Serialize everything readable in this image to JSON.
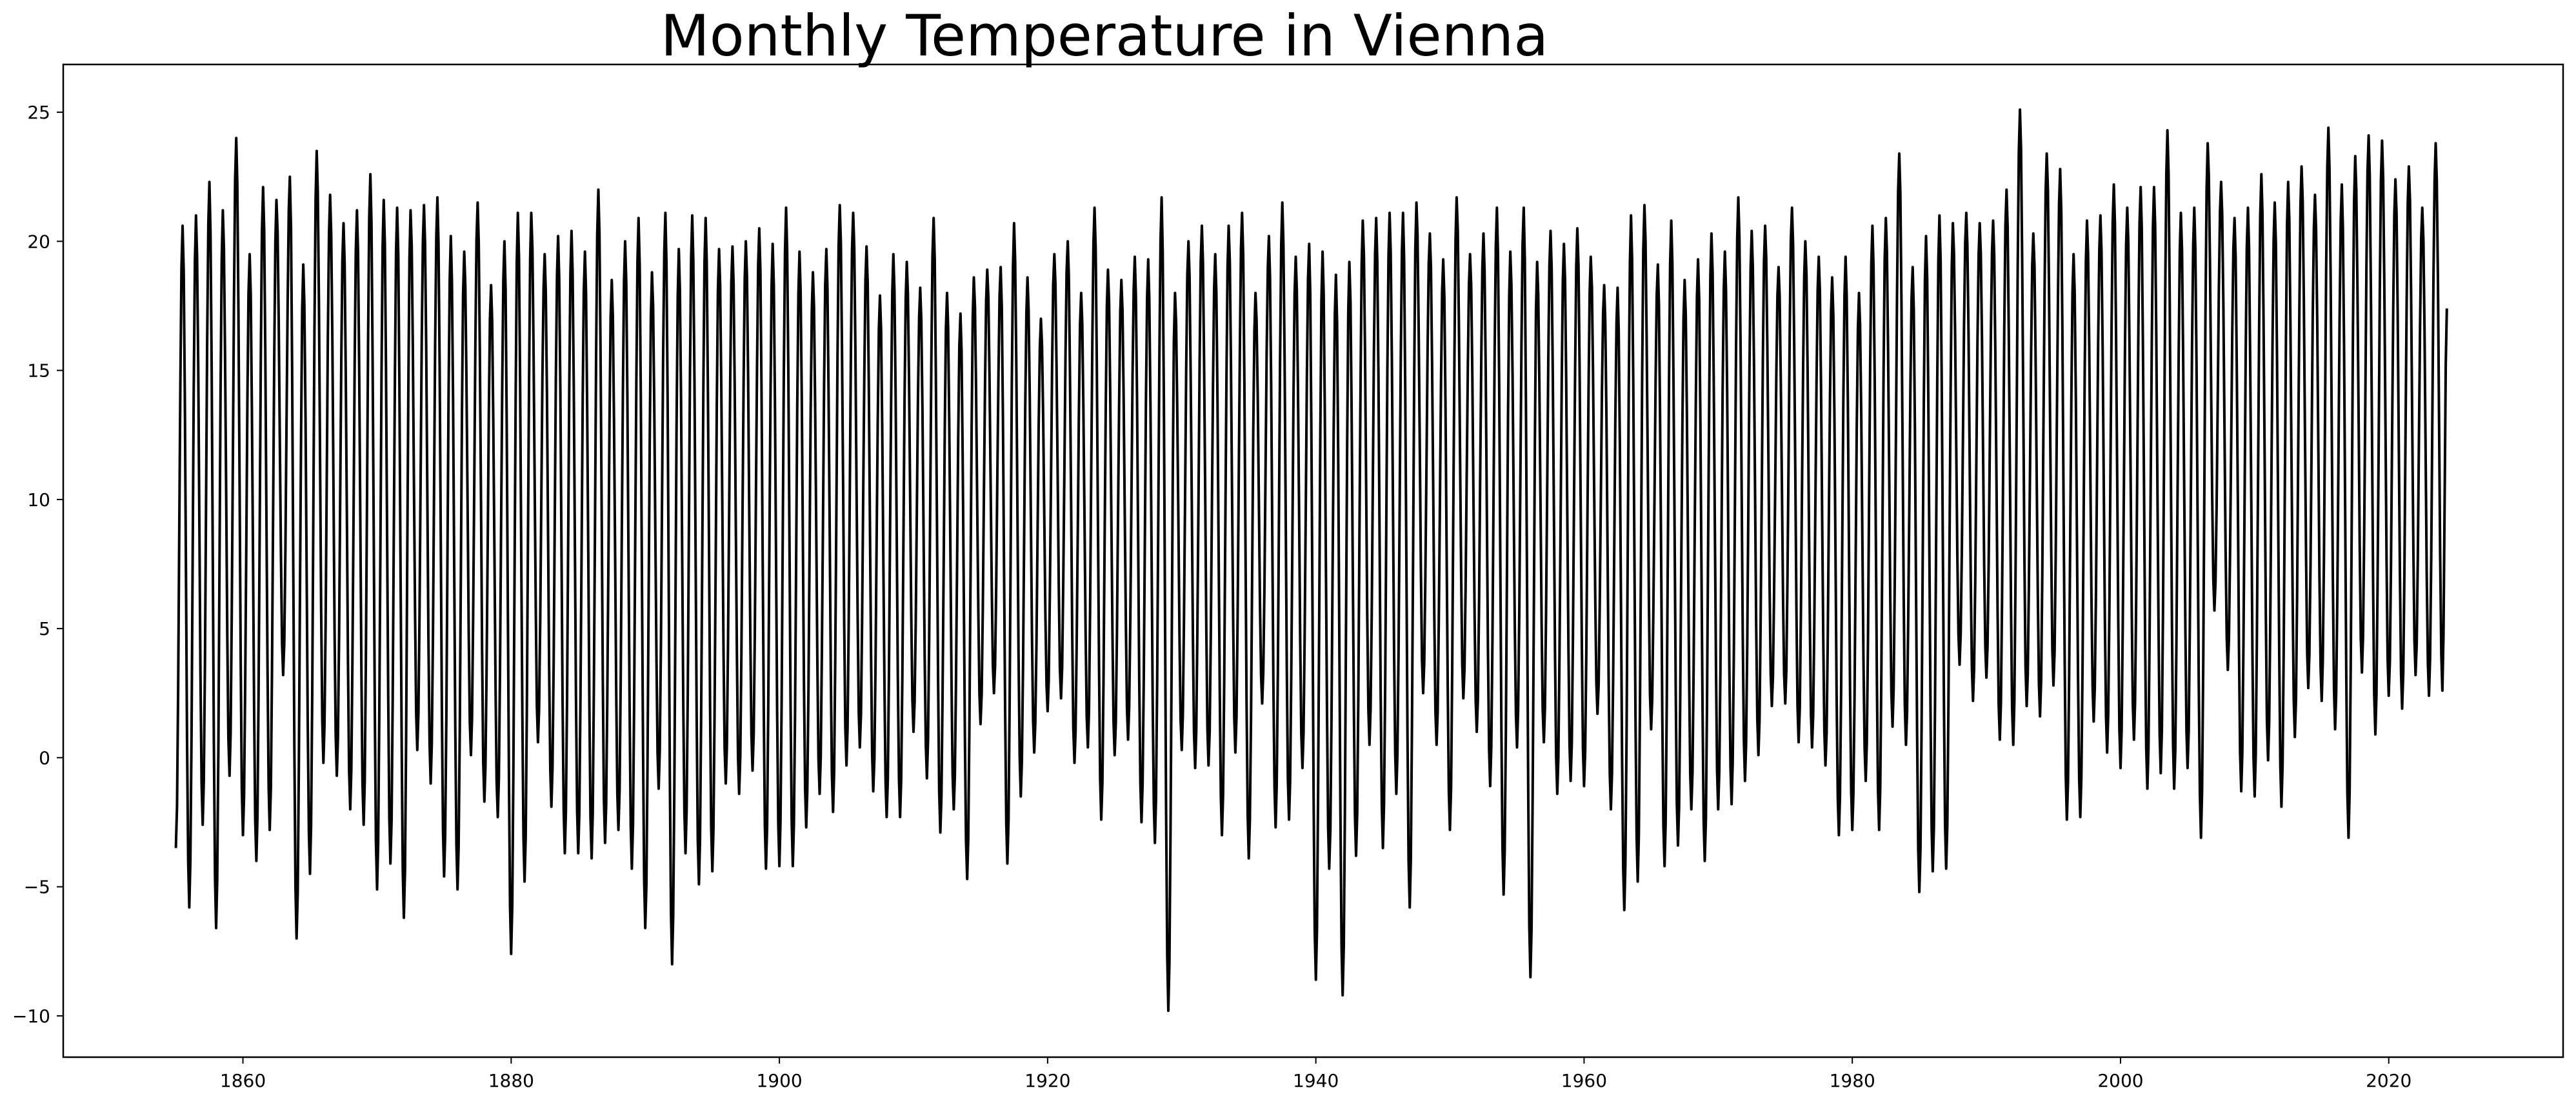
{
  "chart_data": {
    "type": "line",
    "title": "Monthly Temperature in Vienna",
    "xlabel": "",
    "ylabel": "",
    "xlim": [
      1846.6,
      2033.0
    ],
    "ylim": [
      -11.6,
      26.85
    ],
    "grid": false,
    "line_color": "#000000",
    "x_ticks": [
      1860,
      1880,
      1900,
      1920,
      1940,
      1960,
      1980,
      2000,
      2020
    ],
    "x_tick_labels": [
      "1860",
      "1880",
      "1900",
      "1920",
      "1940",
      "1960",
      "1980",
      "2000",
      "2020"
    ],
    "y_ticks": [
      -10,
      -5,
      0,
      5,
      10,
      15,
      20,
      25
    ],
    "y_tick_labels": [
      "−10",
      "−5",
      "0",
      "5",
      "10",
      "15",
      "20",
      "25"
    ],
    "series_note_months": "monthly values; January lows and July highs per year, intermediate months follow the seasonal cycle",
    "start_year": 1855,
    "january_lows": [
      -3.5,
      -5.8,
      -2.6,
      -6.6,
      -0.7,
      -3.0,
      -4.0,
      -2.8,
      3.2,
      -7.0,
      -4.5,
      -0.2,
      -0.7,
      -2.0,
      -2.6,
      -5.1,
      -4.1,
      -6.2,
      0.3,
      -1.0,
      -4.6,
      -5.1,
      0.1,
      -1.7,
      -2.3,
      -7.6,
      -4.8,
      0.6,
      -1.9,
      -3.7,
      -3.7,
      -3.9,
      -3.3,
      -2.8,
      -4.3,
      -6.6,
      -1.2,
      -8.0,
      -3.7,
      -4.9,
      -4.4,
      -1.0,
      -1.4,
      -0.5,
      -4.3,
      -4.2,
      -4.2,
      -2.7,
      -1.4,
      -2.1,
      -0.3,
      0.4,
      -1.3,
      -2.3,
      -2.3,
      1.0,
      -0.8,
      -2.9,
      -2.0,
      -4.7,
      1.3,
      2.5,
      -4.1,
      -1.5,
      0.2,
      1.8,
      2.3,
      -0.2,
      0.4,
      -2.4,
      0.1,
      0.7,
      -2.5,
      -3.3,
      -9.8,
      0.3,
      -0.4,
      -0.3,
      -3.0,
      0.2,
      -3.9,
      2.1,
      -2.7,
      -2.4,
      -0.4,
      -8.6,
      -4.3,
      -9.2,
      -3.8,
      0.5,
      -3.5,
      -1.4,
      -5.8,
      2.5,
      0.5,
      -2.8,
      2.3,
      1.0,
      -1.1,
      -5.3,
      0.4,
      -8.5,
      0.6,
      -1.4,
      -0.9,
      -1.1,
      1.7,
      -2.0,
      -5.9,
      -4.8,
      1.1,
      -4.2,
      -3.4,
      -2.0,
      -4.0,
      -2.0,
      -1.8,
      -0.9,
      0.1,
      2.0,
      2.1,
      0.6,
      0.4,
      -0.3,
      -3.0,
      -2.8,
      -0.9,
      -2.8,
      1.2,
      0.5,
      -5.2,
      -4.4,
      -4.3,
      3.6,
      2.2,
      3.1,
      0.7,
      0.5,
      2.0,
      1.6,
      2.8,
      -2.4,
      -2.3,
      1.4,
      0.2,
      -0.4,
      0.7,
      -1.2,
      -0.6,
      -1.2,
      -0.4,
      -3.1,
      5.7,
      3.4,
      -1.3,
      -1.5,
      -0.1,
      -1.9,
      0.8,
      2.7,
      2.2,
      1.1,
      -3.1,
      3.3,
      0.9,
      2.4,
      1.9,
      3.2,
      2.4,
      2.6
    ],
    "july_highs": [
      20.6,
      21.0,
      22.3,
      21.2,
      24.0,
      19.5,
      22.1,
      21.6,
      22.5,
      19.1,
      23.5,
      21.8,
      20.7,
      21.2,
      22.6,
      21.6,
      21.3,
      21.2,
      21.4,
      21.7,
      20.2,
      19.6,
      21.5,
      18.3,
      20.0,
      21.1,
      21.1,
      19.5,
      20.2,
      20.4,
      19.6,
      22.0,
      18.5,
      20.0,
      20.9,
      18.8,
      21.1,
      19.7,
      21.0,
      20.9,
      19.7,
      19.8,
      20.0,
      20.5,
      19.9,
      21.3,
      19.6,
      18.8,
      19.7,
      21.4,
      21.1,
      19.8,
      17.9,
      19.5,
      19.2,
      18.2,
      20.9,
      18.0,
      17.2,
      18.6,
      18.9,
      19.0,
      20.7,
      18.6,
      17.0,
      19.5,
      20.0,
      18.0,
      21.3,
      18.9,
      18.5,
      19.4,
      19.3,
      21.7,
      18.0,
      20.0,
      20.6,
      19.5,
      20.6,
      21.1,
      18.0,
      20.2,
      21.5,
      19.4,
      19.9,
      19.6,
      18.7,
      19.2,
      20.8,
      20.9,
      21.1,
      21.1,
      21.5,
      20.3,
      19.3,
      21.7,
      19.5,
      20.3,
      21.3,
      19.6,
      21.3,
      19.2,
      20.4,
      19.9,
      20.5,
      19.4,
      18.3,
      18.2,
      21.0,
      21.4,
      19.1,
      20.8,
      18.5,
      19.3,
      20.3,
      19.6,
      21.7,
      20.4,
      20.6,
      19.0,
      21.3,
      20.0,
      19.4,
      18.6,
      19.4,
      18.0,
      20.6,
      20.9,
      23.4,
      19.0,
      20.2,
      21.0,
      20.7,
      21.1,
      20.7,
      20.8,
      22.0,
      25.1,
      20.3,
      23.4,
      22.8,
      19.5,
      20.8,
      21.0,
      22.2,
      21.3,
      22.1,
      22.1,
      24.3,
      21.1,
      21.3,
      23.8,
      22.3,
      20.9,
      21.3,
      22.6,
      21.5,
      22.3,
      22.9,
      21.8,
      24.4,
      22.2,
      23.3,
      24.1,
      23.9,
      22.4,
      22.9,
      21.3,
      23.8
    ],
    "last_point": {
      "x": 2024.33,
      "y": 17.4
    }
  }
}
